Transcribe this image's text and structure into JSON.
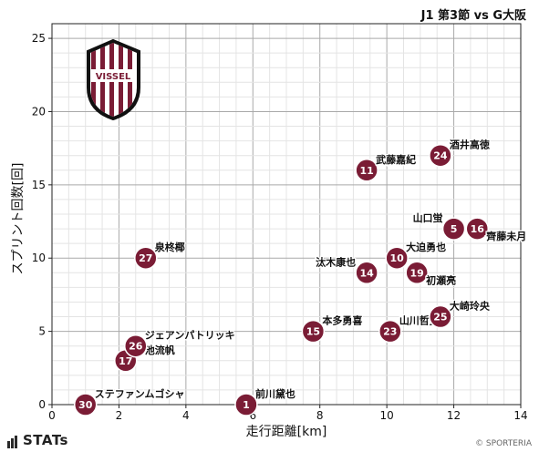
{
  "header": {
    "title": "J1 第3節 vs G大阪"
  },
  "footer": {
    "stats_logo": "STATs",
    "credit": "© SPORTERIA"
  },
  "colors": {
    "marker": "#7a1c35",
    "marker_text": "#ffffff",
    "grid": "#b8b8b8",
    "axis": "#222222"
  },
  "chart_data": {
    "type": "scatter",
    "xlabel": "走行距離[km]",
    "ylabel": "スプリント回数[回]",
    "xlim": [
      0,
      14
    ],
    "ylim": [
      0,
      26
    ],
    "xticks": [
      0,
      2,
      4,
      6,
      8,
      10,
      12,
      14
    ],
    "yticks": [
      0,
      5,
      10,
      15,
      20,
      25
    ],
    "grid": true,
    "points": [
      {
        "number": "30",
        "name": "ステファンムゴシャ",
        "x": 1.0,
        "y": 0
      },
      {
        "number": "1",
        "name": "前川黛也",
        "x": 5.8,
        "y": 0
      },
      {
        "number": "17",
        "name": "菊池流帆",
        "x": 2.2,
        "y": 3
      },
      {
        "number": "26",
        "name": "ジェアンパトリッキ",
        "x": 2.5,
        "y": 4
      },
      {
        "number": "27",
        "name": "泉柊椰",
        "x": 2.8,
        "y": 10
      },
      {
        "number": "15",
        "name": "本多勇喜",
        "x": 7.8,
        "y": 5
      },
      {
        "number": "23",
        "name": "山川哲史",
        "x": 10.1,
        "y": 5
      },
      {
        "number": "14",
        "name": "汰木康也",
        "x": 9.4,
        "y": 9
      },
      {
        "number": "10",
        "name": "大迫勇也",
        "x": 10.3,
        "y": 10
      },
      {
        "number": "19",
        "name": "初瀬亮",
        "x": 10.9,
        "y": 9
      },
      {
        "number": "11",
        "name": "武藤嘉紀",
        "x": 9.4,
        "y": 16
      },
      {
        "number": "24",
        "name": "酒井高徳",
        "x": 11.6,
        "y": 17
      },
      {
        "number": "5",
        "name": "山口蛍",
        "x": 12.0,
        "y": 12
      },
      {
        "number": "16",
        "name": "齊藤未月",
        "x": 12.7,
        "y": 12
      },
      {
        "number": "25",
        "name": "大崎玲央",
        "x": 11.6,
        "y": 6
      }
    ]
  }
}
